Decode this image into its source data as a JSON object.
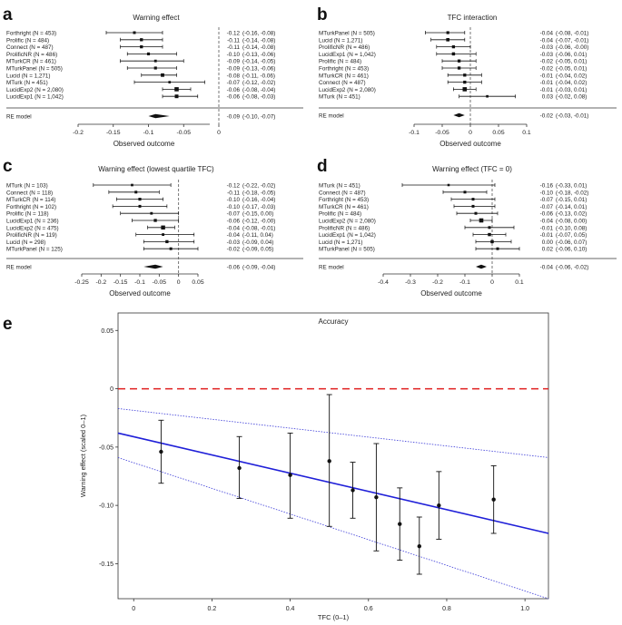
{
  "panels": [
    {
      "letter": "a",
      "title": "Warning effect",
      "ticks": [
        "-0.2",
        "-0.15",
        "-0.1",
        "-0.05",
        "0"
      ],
      "xlabel": "Observed outcome",
      "rows": [
        {
          "label": "Forthright (N = 453)",
          "est": "-0.12",
          "ci": "(-0.16, -0.08)"
        },
        {
          "label": "Prolific (N = 484)",
          "est": "-0.11",
          "ci": "(-0.14, -0.08)"
        },
        {
          "label": "Connect (N = 487)",
          "est": "-0.11",
          "ci": "(-0.14, -0.08)"
        },
        {
          "label": "ProlificNR (N = 486)",
          "est": "-0.10",
          "ci": "(-0.13, -0.06)"
        },
        {
          "label": "MTurkCR (N = 461)",
          "est": "-0.09",
          "ci": "(-0.14, -0.05)"
        },
        {
          "label": "MTurkPanel (N = 505)",
          "est": "-0.09",
          "ci": "(-0.13, -0.06)"
        },
        {
          "label": "Lucid (N = 1,271)",
          "est": "-0.08",
          "ci": "(-0.11, -0.06)"
        },
        {
          "label": "MTurk (N = 451)",
          "est": "-0.07",
          "ci": "(-0.12, -0.02)"
        },
        {
          "label": "LucidExp2 (N = 2,080)",
          "est": "-0.06",
          "ci": "(-0.08, -0.04)"
        },
        {
          "label": "LucidExp1 (N = 1,042)",
          "est": "-0.06",
          "ci": "(-0.08, -0.03)"
        }
      ],
      "re": {
        "label": "RE model",
        "est": "-0.09",
        "ci": "(-0.10, -0.07)"
      }
    },
    {
      "letter": "b",
      "title": "TFC interaction",
      "ticks": [
        "-0.1",
        "-0.05",
        "0",
        "0.05",
        "0.1"
      ],
      "xlabel": "Observed outcome",
      "rows": [
        {
          "label": "MTurkPanel (N = 505)",
          "est": "-0.04",
          "ci": "(-0.08, -0.01)"
        },
        {
          "label": "Lucid (N = 1,271)",
          "est": "-0.04",
          "ci": "(-0.07, -0.01)"
        },
        {
          "label": "ProlificNR (N = 486)",
          "est": "-0.03",
          "ci": "(-0.06, -0.00)"
        },
        {
          "label": "LucidExp1 (N = 1,042)",
          "est": "-0.03",
          "ci": "(-0.06, 0.01)"
        },
        {
          "label": "Prolific (N = 484)",
          "est": "-0.02",
          "ci": "(-0.05, 0.01)"
        },
        {
          "label": "Forthright (N = 453)",
          "est": "-0.02",
          "ci": "(-0.05, 0.01)"
        },
        {
          "label": "MTurkCR (N = 461)",
          "est": "-0.01",
          "ci": "(-0.04, 0.02)"
        },
        {
          "label": "Connect (N = 487)",
          "est": "-0.01",
          "ci": "(-0.04, 0.02)"
        },
        {
          "label": "LucidExp2 (N = 2,080)",
          "est": "-0.01",
          "ci": "(-0.03, 0.01)"
        },
        {
          "label": "MTurk (N = 451)",
          "est": "0.03",
          "ci": "(-0.02, 0.08)"
        }
      ],
      "re": {
        "label": "RE model",
        "est": "-0.02",
        "ci": "(-0.03, -0.01)"
      }
    },
    {
      "letter": "c",
      "title": "Warning effect (lowest quartile TFC)",
      "ticks": [
        "-0.25",
        "-0.2",
        "-0.15",
        "-0.1",
        "-0.05",
        "0",
        "0.05"
      ],
      "xlabel": "Observed outcome",
      "rows": [
        {
          "label": "MTurk (N = 103)",
          "est": "-0.12",
          "ci": "(-0.22, -0.02)"
        },
        {
          "label": "Connect (N = 118)",
          "est": "-0.11",
          "ci": "(-0.18, -0.05)"
        },
        {
          "label": "MTurkCR (N = 114)",
          "est": "-0.10",
          "ci": "(-0.16, -0.04)"
        },
        {
          "label": "Forthright (N = 102)",
          "est": "-0.10",
          "ci": "(-0.17, -0.03)"
        },
        {
          "label": "Prolific (N = 118)",
          "est": "-0.07",
          "ci": "(-0.15, 0.00)"
        },
        {
          "label": "LucidExp1 (N = 236)",
          "est": "-0.06",
          "ci": "(-0.12, -0.00)"
        },
        {
          "label": "LucidExp2 (N = 475)",
          "est": "-0.04",
          "ci": "(-0.08, -0.01)"
        },
        {
          "label": "ProlificNR (N = 119)",
          "est": "-0.04",
          "ci": "(-0.11, 0.04)"
        },
        {
          "label": "Lucid (N = 298)",
          "est": "-0.03",
          "ci": "(-0.09, 0.04)"
        },
        {
          "label": "MTurkPanel (N = 125)",
          "est": "-0.02",
          "ci": "(-0.09, 0.05)"
        }
      ],
      "re": {
        "label": "RE model",
        "est": "-0.06",
        "ci": "(-0.09, -0.04)"
      }
    },
    {
      "letter": "d",
      "title": "Warning effect (TFC = 0)",
      "ticks": [
        "-0.4",
        "-0.3",
        "-0.2",
        "-0.1",
        "0",
        "0.1"
      ],
      "xlabel": "Observed outcome",
      "rows": [
        {
          "label": "MTurk (N = 451)",
          "est": "-0.16",
          "ci": "(-0.33, 0.01)"
        },
        {
          "label": "Connect (N = 487)",
          "est": "-0.10",
          "ci": "(-0.18, -0.02)"
        },
        {
          "label": "Forthright (N = 453)",
          "est": "-0.07",
          "ci": "(-0.15, 0.01)"
        },
        {
          "label": "MTurkCR (N = 461)",
          "est": "-0.07",
          "ci": "(-0.14, 0.01)"
        },
        {
          "label": "Prolific (N = 484)",
          "est": "-0.06",
          "ci": "(-0.13, 0.02)"
        },
        {
          "label": "LucidExp2 (N = 2,080)",
          "est": "-0.04",
          "ci": "(-0.08, 0.00)"
        },
        {
          "label": "ProlificNR (N = 486)",
          "est": "-0.01",
          "ci": "(-0.10, 0.08)"
        },
        {
          "label": "LucidExp1 (N = 1,042)",
          "est": "-0.01",
          "ci": "(-0.07, 0.05)"
        },
        {
          "label": "Lucid (N = 1,271)",
          "est": "0.00",
          "ci": "(-0.06, 0.07)"
        },
        {
          "label": "MTurkPanel (N = 505)",
          "est": "0.02",
          "ci": "(-0.06, 0.10)"
        }
      ],
      "re": {
        "label": "RE model",
        "est": "-0.04",
        "ci": "(-0.06, -0.02)"
      }
    },
    {
      "letter": "e",
      "title": "Accuracy",
      "xlabel": "TFC (0–1)",
      "ylabel": "Warning effect (scaled 0–1)",
      "xticks": [
        "0",
        "0.2",
        "0.4",
        "0.6",
        "0.8",
        "1.0"
      ],
      "yticks": [
        "0.05",
        "0",
        "-0.05",
        "-0.10",
        "-0.15"
      ]
    }
  ],
  "chart_data": [
    {
      "type": "forest",
      "title": "Warning effect",
      "xlabel": "Observed outcome",
      "xlim": [
        -0.2,
        0
      ],
      "studies": [
        "Forthright (N = 453)",
        "Prolific (N = 484)",
        "Connect (N = 487)",
        "ProlificNR (N = 486)",
        "MTurkCR (N = 461)",
        "MTurkPanel (N = 505)",
        "Lucid (N = 1,271)",
        "MTurk (N = 451)",
        "LucidExp2 (N = 2,080)",
        "LucidExp1 (N = 1,042)"
      ],
      "est": [
        -0.12,
        -0.11,
        -0.11,
        -0.1,
        -0.09,
        -0.09,
        -0.08,
        -0.07,
        -0.06,
        -0.06
      ],
      "lo": [
        -0.16,
        -0.14,
        -0.14,
        -0.13,
        -0.14,
        -0.13,
        -0.11,
        -0.12,
        -0.08,
        -0.08
      ],
      "hi": [
        -0.08,
        -0.08,
        -0.08,
        -0.06,
        -0.05,
        -0.06,
        -0.06,
        -0.02,
        -0.04,
        -0.03
      ],
      "weights": [
        1.0,
        1.2,
        1.2,
        1.1,
        0.9,
        1.1,
        1.5,
        0.8,
        2.0,
        1.6
      ],
      "re_model": {
        "est": -0.09,
        "lo": -0.1,
        "hi": -0.07
      }
    },
    {
      "type": "forest",
      "title": "TFC interaction",
      "xlabel": "Observed outcome",
      "xlim": [
        -0.1,
        0.1
      ],
      "studies": [
        "MTurkPanel (N = 505)",
        "Lucid (N = 1,271)",
        "ProlificNR (N = 486)",
        "LucidExp1 (N = 1,042)",
        "Prolific (N = 484)",
        "Forthright (N = 453)",
        "MTurkCR (N = 461)",
        "Connect (N = 487)",
        "LucidExp2 (N = 2,080)",
        "MTurk (N = 451)"
      ],
      "est": [
        -0.04,
        -0.04,
        -0.03,
        -0.03,
        -0.02,
        -0.02,
        -0.01,
        -0.01,
        -0.01,
        0.03
      ],
      "lo": [
        -0.08,
        -0.07,
        -0.06,
        -0.06,
        -0.05,
        -0.05,
        -0.04,
        -0.04,
        -0.03,
        -0.02
      ],
      "hi": [
        -0.01,
        -0.01,
        -0.0,
        0.01,
        0.01,
        0.01,
        0.02,
        0.02,
        0.01,
        0.08
      ],
      "weights": [
        1.1,
        1.4,
        1.2,
        1.3,
        1.2,
        1.2,
        1.2,
        1.2,
        2.0,
        0.8
      ],
      "re_model": {
        "est": -0.02,
        "lo": -0.03,
        "hi": -0.01
      }
    },
    {
      "type": "forest",
      "title": "Warning effect (lowest quartile TFC)",
      "xlabel": "Observed outcome",
      "xlim": [
        -0.25,
        0.05
      ],
      "studies": [
        "MTurk (N = 103)",
        "Connect (N = 118)",
        "MTurkCR (N = 114)",
        "Forthright (N = 102)",
        "Prolific (N = 118)",
        "LucidExp1 (N = 236)",
        "LucidExp2 (N = 475)",
        "ProlificNR (N = 119)",
        "Lucid (N = 298)",
        "MTurkPanel (N = 125)"
      ],
      "est": [
        -0.12,
        -0.11,
        -0.1,
        -0.1,
        -0.07,
        -0.06,
        -0.04,
        -0.04,
        -0.03,
        -0.02
      ],
      "lo": [
        -0.22,
        -0.18,
        -0.16,
        -0.17,
        -0.15,
        -0.12,
        -0.08,
        -0.11,
        -0.09,
        -0.09
      ],
      "hi": [
        -0.02,
        -0.05,
        -0.04,
        -0.03,
        0.0,
        -0.0,
        -0.01,
        0.04,
        0.04,
        0.05
      ],
      "weights": [
        0.8,
        1.0,
        1.1,
        1.0,
        0.9,
        1.2,
        1.9,
        0.9,
        1.2,
        1.0
      ],
      "re_model": {
        "est": -0.06,
        "lo": -0.09,
        "hi": -0.04
      }
    },
    {
      "type": "forest",
      "title": "Warning effect (TFC = 0)",
      "xlabel": "Observed outcome",
      "xlim": [
        -0.4,
        0.1
      ],
      "studies": [
        "MTurk (N = 451)",
        "Connect (N = 487)",
        "Forthright (N = 453)",
        "MTurkCR (N = 461)",
        "Prolific (N = 484)",
        "LucidExp2 (N = 2,080)",
        "ProlificNR (N = 486)",
        "LucidExp1 (N = 1,042)",
        "Lucid (N = 1,271)",
        "MTurkPanel (N = 505)"
      ],
      "est": [
        -0.16,
        -0.1,
        -0.07,
        -0.07,
        -0.06,
        -0.04,
        -0.01,
        -0.01,
        0.0,
        0.02
      ],
      "lo": [
        -0.33,
        -0.18,
        -0.15,
        -0.14,
        -0.13,
        -0.08,
        -0.1,
        -0.07,
        -0.06,
        -0.06
      ],
      "hi": [
        0.01,
        -0.02,
        0.01,
        0.01,
        0.02,
        0.0,
        0.08,
        0.05,
        0.07,
        0.1
      ],
      "weights": [
        0.7,
        1.0,
        1.0,
        1.0,
        1.0,
        2.0,
        1.0,
        1.3,
        1.3,
        1.0
      ],
      "re_model": {
        "est": -0.04,
        "lo": -0.06,
        "hi": -0.02
      }
    },
    {
      "type": "scatter",
      "title": "Accuracy",
      "xlabel": "TFC (0–1)",
      "ylabel": "Warning effect (scaled 0–1)",
      "xlim": [
        -0.04,
        1.06
      ],
      "ylim": [
        -0.18,
        0.065
      ],
      "points": [
        {
          "x": 0.07,
          "y": -0.054,
          "lo": -0.081,
          "hi": -0.027
        },
        {
          "x": 0.27,
          "y": -0.068,
          "lo": -0.094,
          "hi": -0.041
        },
        {
          "x": 0.4,
          "y": -0.074,
          "lo": -0.111,
          "hi": -0.038
        },
        {
          "x": 0.5,
          "y": -0.062,
          "lo": -0.118,
          "hi": -0.005
        },
        {
          "x": 0.56,
          "y": -0.087,
          "lo": -0.111,
          "hi": -0.063
        },
        {
          "x": 0.62,
          "y": -0.093,
          "lo": -0.139,
          "hi": -0.047
        },
        {
          "x": 0.68,
          "y": -0.116,
          "lo": -0.147,
          "hi": -0.085
        },
        {
          "x": 0.73,
          "y": -0.135,
          "lo": -0.159,
          "hi": -0.11
        },
        {
          "x": 0.78,
          "y": -0.1,
          "lo": -0.129,
          "hi": -0.071
        },
        {
          "x": 0.92,
          "y": -0.095,
          "lo": -0.124,
          "hi": -0.066
        }
      ],
      "fit_line": {
        "x": [
          -0.04,
          1.06
        ],
        "y": [
          -0.038,
          -0.124
        ]
      },
      "ci_band_upper": {
        "x": [
          -0.04,
          1.06
        ],
        "y": [
          -0.017,
          -0.059
        ]
      },
      "ci_band_lower": {
        "x": [
          -0.04,
          1.06
        ],
        "y": [
          -0.059,
          -0.18
        ]
      },
      "reference_line": {
        "y": 0
      }
    }
  ]
}
